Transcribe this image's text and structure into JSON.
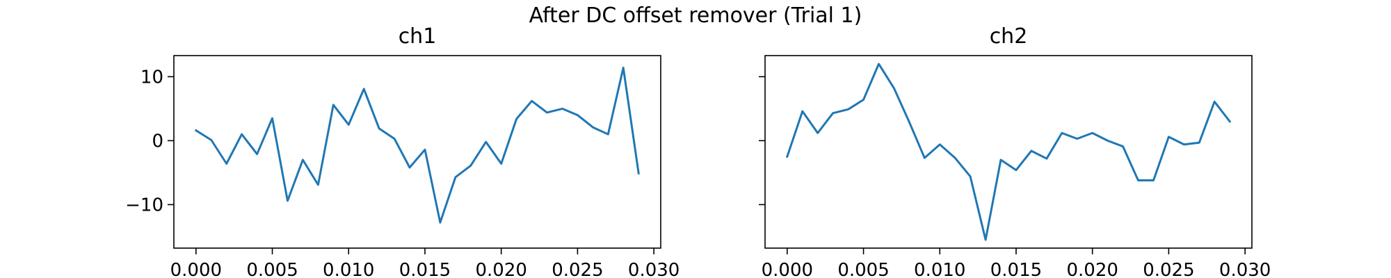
{
  "suptitle": "After DC offset remover (Trial 1)",
  "chart_data": [
    {
      "type": "line",
      "title": "ch1",
      "xlabel": "",
      "ylabel": "",
      "xlim": [
        -0.00145,
        0.03045
      ],
      "ylim": [
        -16.8,
        13.3
      ],
      "xticks": [
        0.0,
        0.005,
        0.01,
        0.015,
        0.02,
        0.025,
        0.03
      ],
      "xtick_labels": [
        "0.000",
        "0.005",
        "0.010",
        "0.015",
        "0.020",
        "0.025",
        "0.030"
      ],
      "yticks": [
        10,
        0,
        -10
      ],
      "ytick_labels": [
        "10",
        "0",
        "−10"
      ],
      "grid": false,
      "series": [
        {
          "color": "#1f77b4",
          "x": [
            0.0,
            0.001,
            0.002,
            0.003,
            0.004,
            0.005,
            0.006,
            0.007,
            0.008,
            0.009,
            0.01,
            0.011,
            0.012,
            0.013,
            0.014,
            0.015,
            0.016,
            0.017,
            0.018,
            0.019,
            0.02,
            0.021,
            0.022,
            0.023,
            0.024,
            0.025,
            0.026,
            0.027,
            0.028,
            0.029
          ],
          "values": [
            1.6,
            0.1,
            -3.6,
            1.0,
            -2.1,
            3.5,
            -9.4,
            -3.0,
            -6.9,
            5.6,
            2.5,
            8.1,
            1.9,
            0.3,
            -4.2,
            -1.4,
            -12.8,
            -5.7,
            -3.9,
            -0.2,
            -3.6,
            3.4,
            6.2,
            4.4,
            5.0,
            4.0,
            2.1,
            1.0,
            11.4,
            -5.1
          ]
        }
      ]
    },
    {
      "type": "line",
      "title": "ch2",
      "xlabel": "",
      "ylabel": "",
      "xlim": [
        -0.00145,
        0.03045
      ],
      "ylim": [
        -16.8,
        13.3
      ],
      "xticks": [
        0.0,
        0.005,
        0.01,
        0.015,
        0.02,
        0.025,
        0.03
      ],
      "xtick_labels": [
        "0.000",
        "0.005",
        "0.010",
        "0.015",
        "0.020",
        "0.025",
        "0.030"
      ],
      "yticks": [
        10,
        0,
        -10
      ],
      "ytick_labels": [],
      "grid": false,
      "series": [
        {
          "color": "#1f77b4",
          "x": [
            0.0,
            0.001,
            0.002,
            0.003,
            0.004,
            0.005,
            0.006,
            0.007,
            0.008,
            0.009,
            0.01,
            0.011,
            0.012,
            0.013,
            0.014,
            0.015,
            0.016,
            0.017,
            0.018,
            0.019,
            0.02,
            0.021,
            0.022,
            0.023,
            0.024,
            0.025,
            0.026,
            0.027,
            0.028,
            0.029
          ],
          "values": [
            -2.5,
            4.6,
            1.2,
            4.3,
            4.9,
            6.4,
            12.0,
            8.2,
            2.9,
            -2.7,
            -0.6,
            -2.7,
            -5.6,
            -15.5,
            -3.0,
            -4.6,
            -1.6,
            -2.8,
            1.2,
            0.3,
            1.2,
            0.0,
            -0.9,
            -6.2,
            -6.2,
            0.6,
            -0.6,
            -0.3,
            6.1,
            3.0
          ]
        }
      ]
    }
  ]
}
